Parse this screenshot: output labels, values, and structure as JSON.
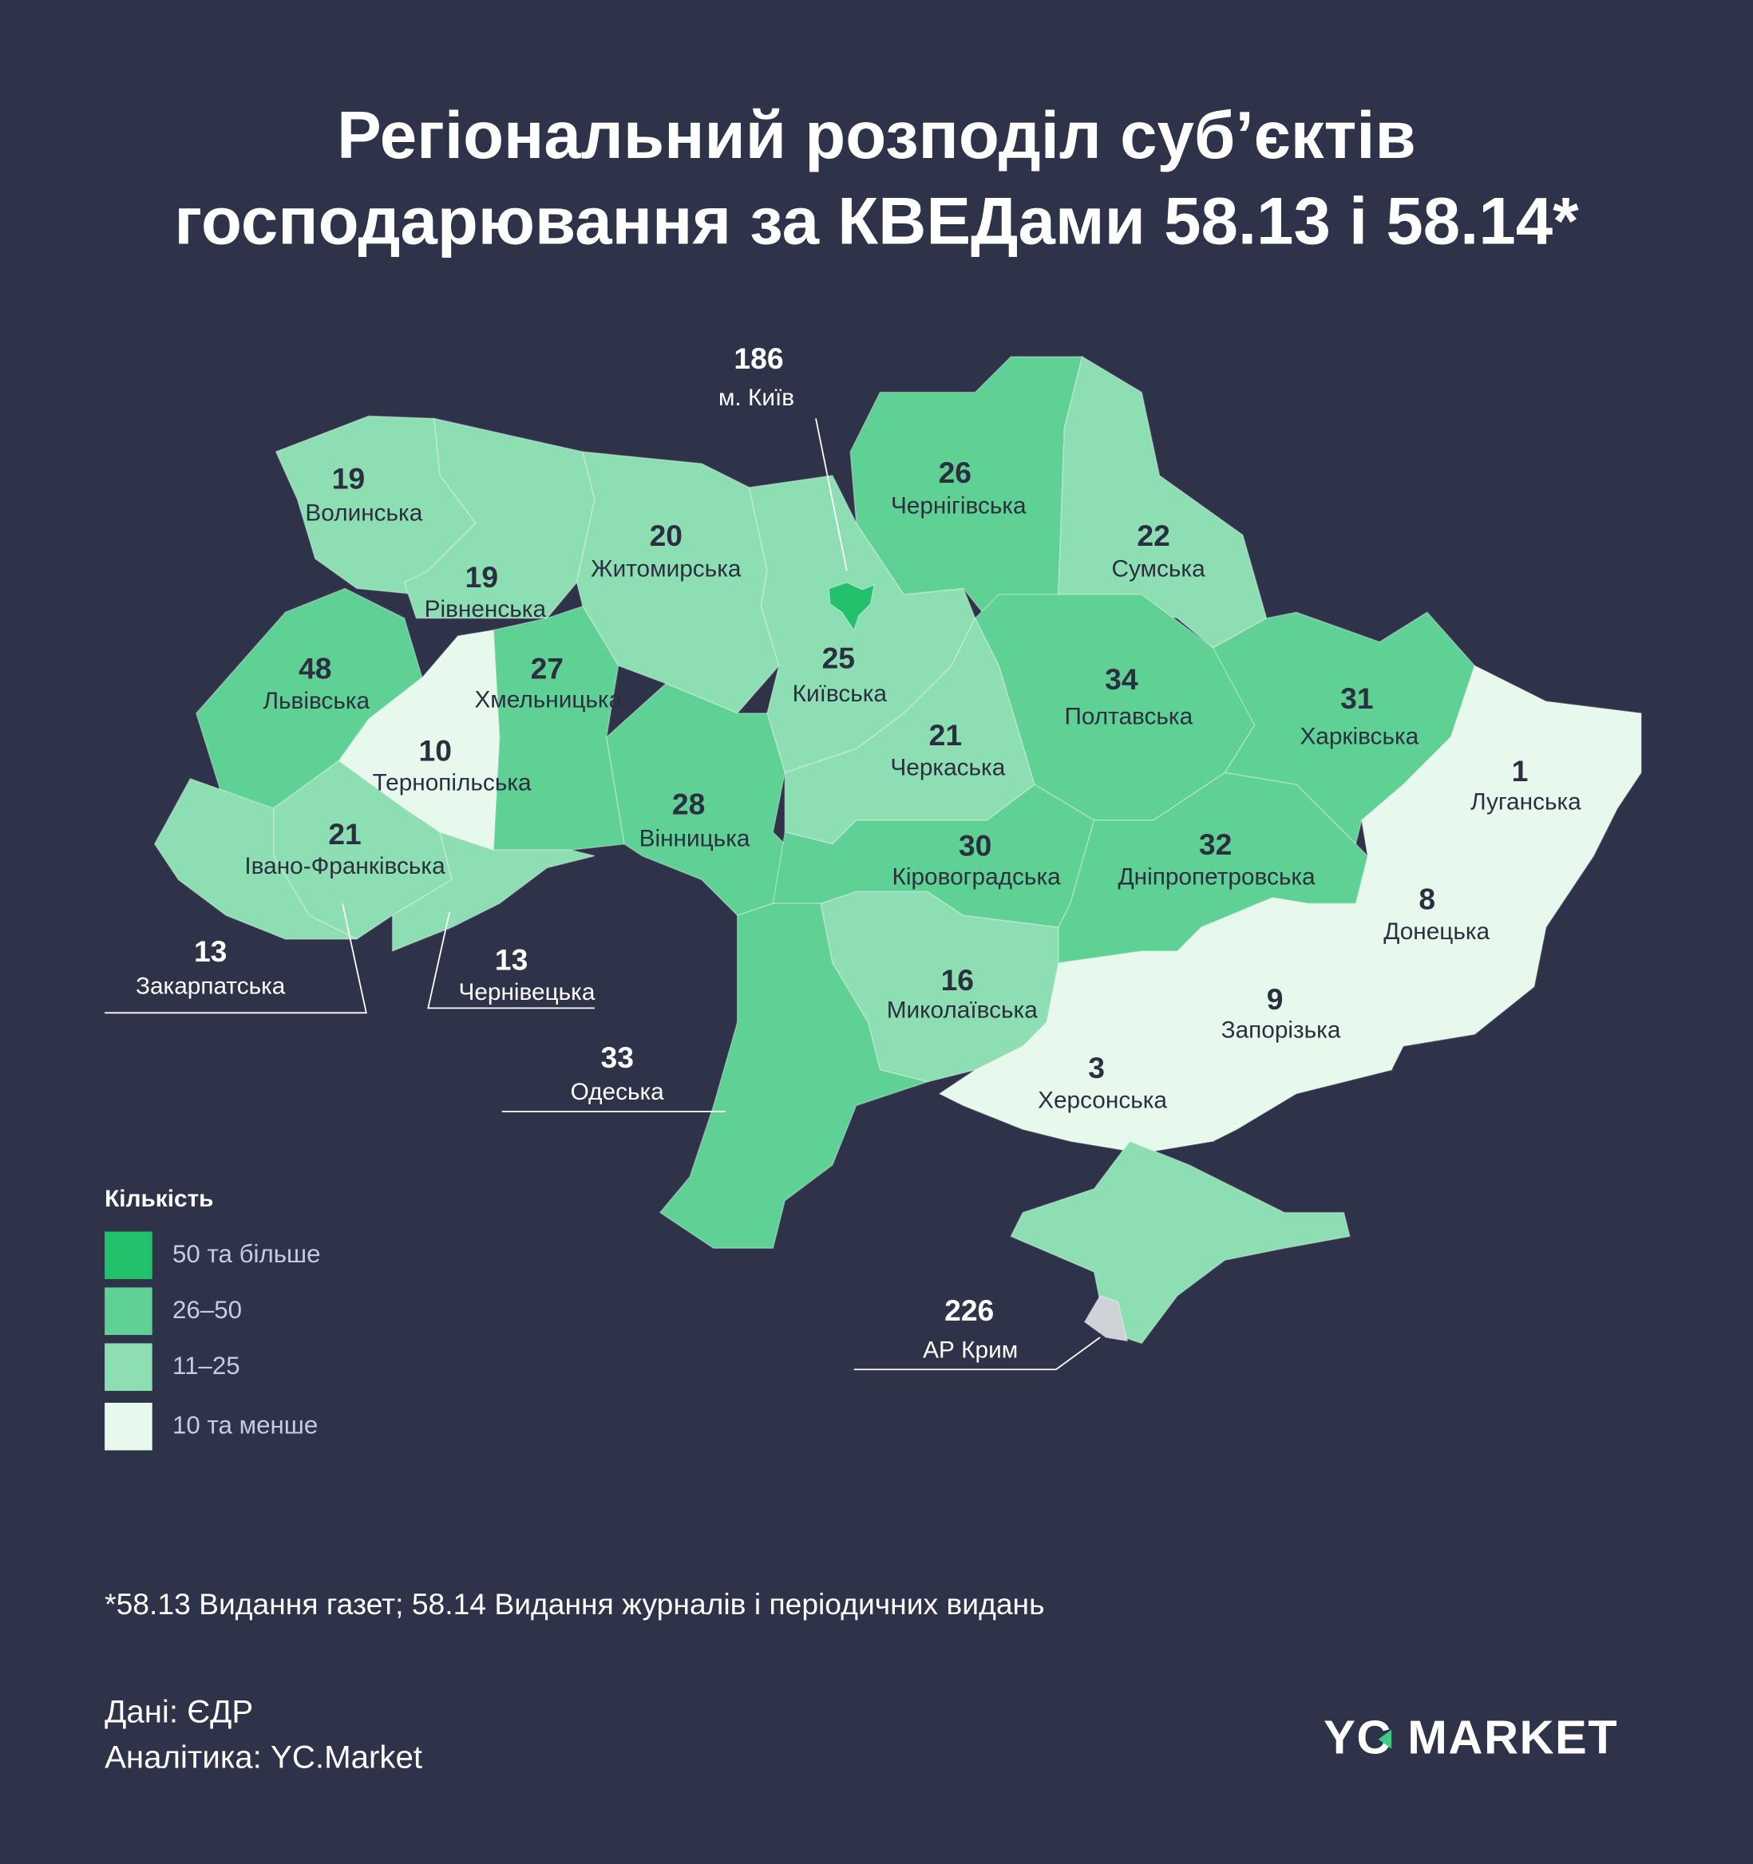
{
  "title": {
    "line1": "Регіональний розподіл суб’єктів",
    "line2": "господарювання за КВЕДами 58.13 і 58.14*"
  },
  "colors": {
    "background": "#2f334a",
    "50_plus": "#22c16b",
    "26_50": "#5fd195",
    "11_25": "#8ddfb3",
    "10_less": "#e6f9ec",
    "sevastopol": "#cfd2d6"
  },
  "regions": [
    {
      "name": "Волинська",
      "value": "19"
    },
    {
      "name": "Рівненська",
      "value": "19"
    },
    {
      "name": "Житомирська",
      "value": "20"
    },
    {
      "name": "Київська",
      "value": "25"
    },
    {
      "name": "Чернігівська",
      "value": "26"
    },
    {
      "name": "Сумська",
      "value": "22"
    },
    {
      "name": "Львівська",
      "value": "48"
    },
    {
      "name": "Хмельницька",
      "value": "27"
    },
    {
      "name": "Тернопільська",
      "value": "10"
    },
    {
      "name": "Івано-Франківська",
      "value": "21"
    },
    {
      "name": "Вінницька",
      "value": "28"
    },
    {
      "name": "Черкаська",
      "value": "21"
    },
    {
      "name": "Полтавська",
      "value": "34"
    },
    {
      "name": "Харківська",
      "value": "31"
    },
    {
      "name": "Луганська",
      "value": "1"
    },
    {
      "name": "Кіровоградська",
      "value": "30"
    },
    {
      "name": "Дніпропетровська",
      "value": "32"
    },
    {
      "name": "Донецька",
      "value": "8"
    },
    {
      "name": "Миколаївська",
      "value": "16"
    },
    {
      "name": "Запорізька",
      "value": "9"
    },
    {
      "name": "Херсонська",
      "value": "3"
    },
    {
      "name": "Закарпатська",
      "value": "13"
    },
    {
      "name": "Чернівецька",
      "value": "13"
    },
    {
      "name": "Одеська",
      "value": "33"
    },
    {
      "name": "АР Крим",
      "value": "226"
    },
    {
      "name": "м. Київ",
      "value": "186"
    }
  ],
  "legend": {
    "title": "Кількість",
    "items": [
      {
        "label": "50 та більше",
        "color": "#22c16b"
      },
      {
        "label": "26–50",
        "color": "#5fd195"
      },
      {
        "label": "11–25",
        "color": "#8ddfb3"
      },
      {
        "label": "10 та менше",
        "color": "#e6f9ec"
      }
    ]
  },
  "footnote": "*58.13 Видання газет; 58.14 Видання журналів і періодичних видань",
  "source": {
    "data": "Дані: ЄДР",
    "analytics": "Аналітика: YC.Market"
  },
  "logo": {
    "left": "YC",
    "right": "MARKET"
  }
}
